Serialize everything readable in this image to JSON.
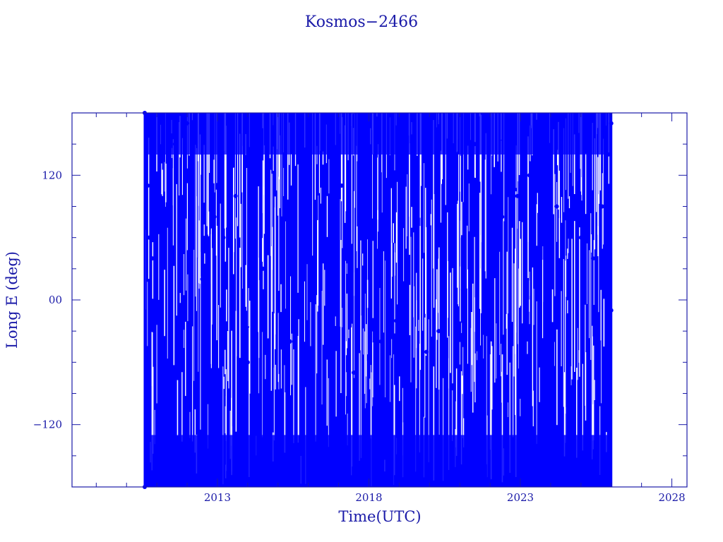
{
  "colors": {
    "axis": "#1a1aa8",
    "series": "#0000ff",
    "background": "#ffffff"
  },
  "chart_data": {
    "type": "scatter",
    "title": "Kosmos−2466",
    "xlabel": "Time(UTC)",
    "ylabel": "Long E (deg)",
    "xlim": [
      2008.2,
      2028.5
    ],
    "ylim": [
      -180,
      180
    ],
    "x_ticks": [
      {
        "value": 2013,
        "label": "2013"
      },
      {
        "value": 2018,
        "label": "2018"
      },
      {
        "value": 2023,
        "label": "2023"
      },
      {
        "value": 2028,
        "label": "2028"
      }
    ],
    "x_minor_step": 1,
    "y_ticks": [
      {
        "value": 120,
        "label": "120"
      },
      {
        "value": 0,
        "label": "00"
      },
      {
        "value": -120,
        "label": "−120"
      }
    ],
    "y_minor_step": 30,
    "grid": false,
    "data_span": {
      "start": 2010.6,
      "end": 2026.0
    },
    "series": [
      {
        "note_style": "dense vertical sweeps covering full longitude range",
        "points": [
          [
            2010.6,
            180
          ],
          [
            2010.6,
            -180
          ],
          [
            2010.7,
            110
          ],
          [
            2010.75,
            60
          ],
          [
            2010.85,
            40
          ],
          [
            2011.0,
            90
          ],
          [
            2011.3,
            -150
          ],
          [
            2011.6,
            150
          ],
          [
            2012.0,
            170
          ],
          [
            2012.5,
            20
          ],
          [
            2012.9,
            80
          ],
          [
            2013.2,
            60
          ],
          [
            2013.6,
            100
          ],
          [
            2014.0,
            -60
          ],
          [
            2014.5,
            30
          ],
          [
            2015.0,
            -120
          ],
          [
            2015.4,
            -40
          ],
          [
            2015.8,
            110
          ],
          [
            2016.2,
            20
          ],
          [
            2016.6,
            50
          ],
          [
            2017.1,
            110
          ],
          [
            2017.5,
            -70
          ],
          [
            2018.0,
            120
          ],
          [
            2018.4,
            -40
          ],
          [
            2018.9,
            -20
          ],
          [
            2019.4,
            -130
          ],
          [
            2019.9,
            -50
          ],
          [
            2020.3,
            -30
          ],
          [
            2020.7,
            40
          ],
          [
            2021.1,
            10
          ],
          [
            2021.5,
            150
          ],
          [
            2022.0,
            -20
          ],
          [
            2022.4,
            80
          ],
          [
            2022.9,
            100
          ],
          [
            2023.3,
            120
          ],
          [
            2023.8,
            60
          ],
          [
            2024.2,
            90
          ],
          [
            2024.6,
            -30
          ],
          [
            2025.0,
            60
          ],
          [
            2025.4,
            40
          ],
          [
            2025.7,
            90
          ],
          [
            2025.9,
            140
          ],
          [
            2026.0,
            -10
          ],
          [
            2026.0,
            170
          ]
        ]
      }
    ]
  }
}
